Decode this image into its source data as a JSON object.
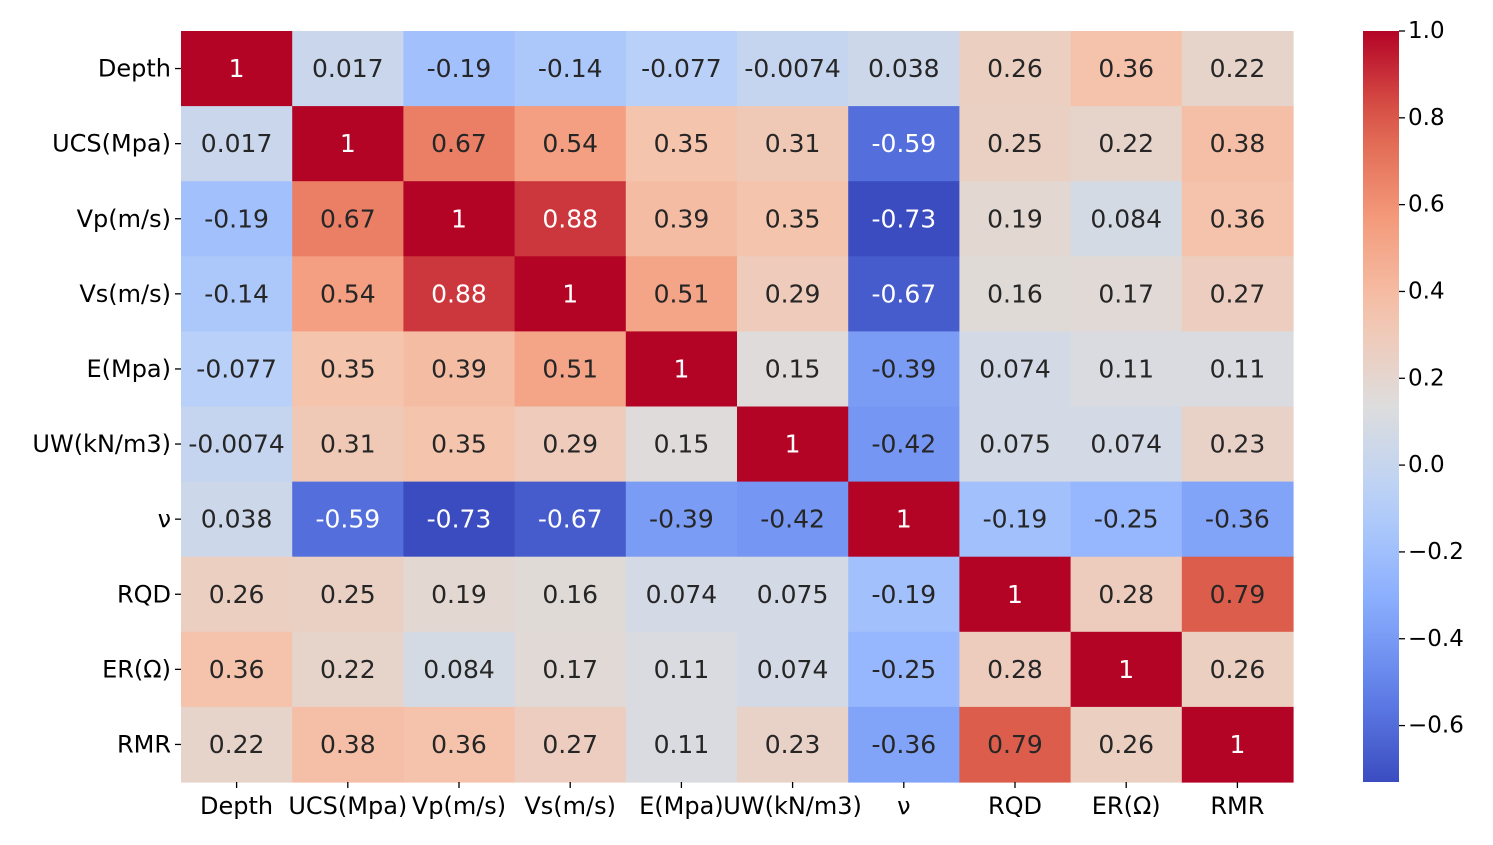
{
  "chart_data": {
    "type": "heatmap",
    "title": "",
    "xlabel": "",
    "ylabel": "",
    "x_labels": [
      "Depth",
      "UCS(Mpa)",
      "Vp(m/s)",
      "Vs(m/s)",
      "E(Mpa)",
      "UW(kN/m3)",
      "ν",
      "RQD",
      "ER(Ω)",
      "RMR"
    ],
    "y_labels": [
      "Depth",
      "UCS(Mpa)",
      "Vp(m/s)",
      "Vs(m/s)",
      "E(Mpa)",
      "UW(kN/m3)",
      "ν",
      "RQD",
      "ER(Ω)",
      "RMR"
    ],
    "values": [
      [
        1,
        0.017,
        -0.19,
        -0.14,
        -0.077,
        -0.0074,
        0.038,
        0.26,
        0.36,
        0.22
      ],
      [
        0.017,
        1,
        0.67,
        0.54,
        0.35,
        0.31,
        -0.59,
        0.25,
        0.22,
        0.38
      ],
      [
        -0.19,
        0.67,
        1,
        0.88,
        0.39,
        0.35,
        -0.73,
        0.19,
        0.084,
        0.36
      ],
      [
        -0.14,
        0.54,
        0.88,
        1,
        0.51,
        0.29,
        -0.67,
        0.16,
        0.17,
        0.27
      ],
      [
        -0.077,
        0.35,
        0.39,
        0.51,
        1,
        0.15,
        -0.39,
        0.074,
        0.11,
        0.11
      ],
      [
        -0.0074,
        0.31,
        0.35,
        0.29,
        0.15,
        1,
        -0.42,
        0.075,
        0.074,
        0.23
      ],
      [
        0.038,
        -0.59,
        -0.73,
        -0.67,
        -0.39,
        -0.42,
        1,
        -0.19,
        -0.25,
        -0.36
      ],
      [
        0.26,
        0.25,
        0.19,
        0.16,
        0.074,
        0.075,
        -0.19,
        1,
        0.28,
        0.79
      ],
      [
        0.36,
        0.22,
        0.084,
        0.17,
        0.11,
        0.074,
        -0.25,
        0.28,
        1,
        0.26
      ],
      [
        0.22,
        0.38,
        0.36,
        0.27,
        0.11,
        0.23,
        -0.36,
        0.79,
        0.26,
        1
      ]
    ],
    "colormap": "coolwarm",
    "colorbar": {
      "vmin": -0.73,
      "vmax": 1.0,
      "ticks": [
        1.0,
        0.8,
        0.6,
        0.4,
        0.2,
        0.0,
        -0.2,
        -0.4,
        -0.6
      ],
      "tick_labels": [
        "1.0",
        "0.8",
        "0.6",
        "0.4",
        "0.2",
        "0.0",
        "−0.2",
        "−0.4",
        "−0.6"
      ]
    },
    "annotations": true
  }
}
